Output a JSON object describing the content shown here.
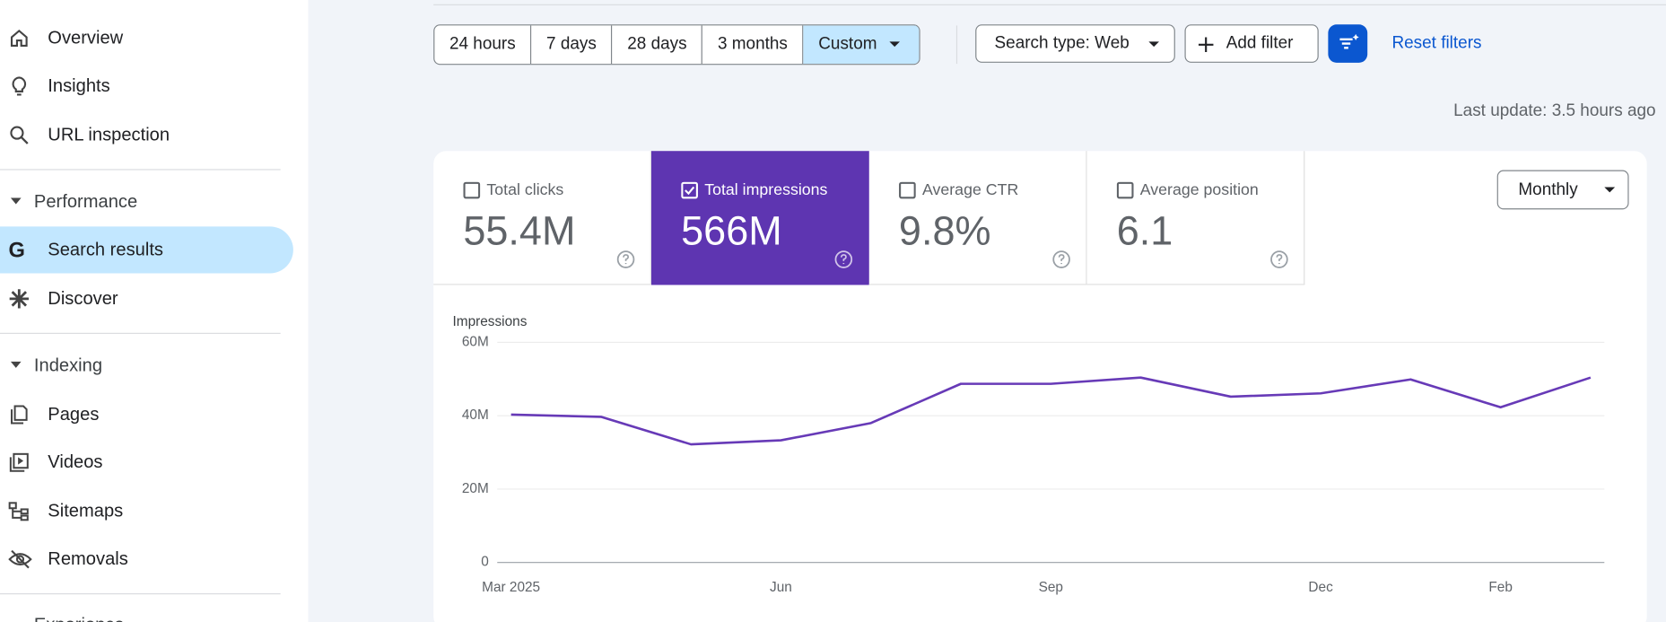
{
  "sidebar": {
    "items": [
      "Overview",
      "Insights",
      "URL inspection"
    ],
    "performance": {
      "title": "Performance",
      "items": [
        "Search results",
        "Discover"
      ]
    },
    "indexing": {
      "title": "Indexing",
      "items": [
        "Pages",
        "Videos",
        "Sitemaps",
        "Removals"
      ]
    },
    "next_section": "Experience"
  },
  "toolbar": {
    "ranges": [
      "24 hours",
      "7 days",
      "28 days",
      "3 months",
      "Custom"
    ],
    "search_type": "Search type: Web",
    "add_filter": "Add filter",
    "reset": "Reset filters"
  },
  "last_update": "Last update: 3.5 hours ago",
  "metrics": [
    {
      "label": "Total clicks",
      "value": "55.4M"
    },
    {
      "label": "Total impressions",
      "value": "566M"
    },
    {
      "label": "Average CTR",
      "value": "9.8%"
    },
    {
      "label": "Average position",
      "value": "6.1"
    }
  ],
  "interval": "Monthly",
  "chart_data": {
    "type": "line",
    "y_label": "Impressions",
    "categories": [
      "Mar 2025",
      null,
      null,
      "Jun",
      null,
      null,
      "Sep",
      null,
      null,
      "Dec",
      null,
      "Feb",
      null
    ],
    "values": [
      40300000,
      39700000,
      32200000,
      33300000,
      38000000,
      48700000,
      48700000,
      50400000,
      45200000,
      46100000,
      49900000,
      42300000,
      50400000
    ],
    "color": "#673ab7",
    "ylim": [
      0,
      60000000
    ],
    "yticks": [
      0,
      {
        "value": 20000000,
        "label": "20M"
      },
      {
        "value": 40000000,
        "label": "40M"
      },
      {
        "value": 60000000,
        "label": "60M"
      }
    ],
    "grid": true
  }
}
